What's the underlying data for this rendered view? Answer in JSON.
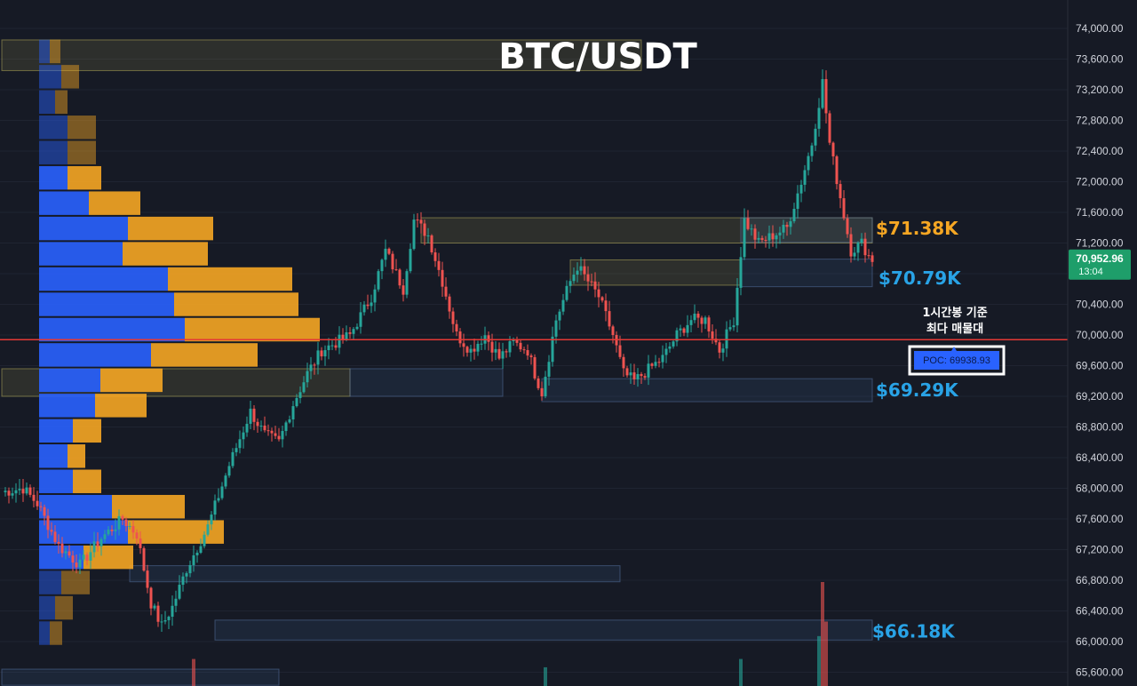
{
  "chart_data": {
    "type": "candlestick",
    "title": "BTC/USDT",
    "symbol": "BTC/USDT",
    "ylim": [
      65450,
      74300
    ],
    "y_ticks": [
      "74,000.00",
      "73,600.00",
      "73,200.00",
      "72,800.00",
      "72,400.00",
      "72,000.00",
      "71,600.00",
      "71,200.00",
      "70,800.00",
      "70,400.00",
      "70,000.00",
      "69,600.00",
      "69,200.00",
      "68,800.00",
      "68,400.00",
      "68,000.00",
      "67,600.00",
      "67,200.00",
      "66,800.00",
      "66,400.00",
      "66,000.00",
      "65,600.00"
    ],
    "y_tick_values": [
      74000,
      73600,
      73200,
      72800,
      72400,
      72000,
      71600,
      71200,
      70800,
      70400,
      70000,
      69600,
      69200,
      68800,
      68400,
      68000,
      67600,
      67200,
      66800,
      66400,
      66000,
      65600
    ],
    "colors": {
      "up": "#26a69a",
      "down": "#ef5350",
      "buy_volume": "#2962ff",
      "sell_volume": "#f5a623",
      "poc_line": "#e53935",
      "level_orange": "#f5a623",
      "level_blue": "#29a3e6",
      "price_label": "#1e9e6a"
    },
    "current_price": {
      "value": 70952.96,
      "label": "70,952.96",
      "timer": "13:04"
    },
    "poc": {
      "value": 69938.93,
      "label": "POC: 69938.93",
      "note": [
        "1시간봉 기준",
        "최다 매물대"
      ]
    },
    "levels": [
      {
        "label": "$71.38K",
        "value": 71380,
        "color": "#f5a623"
      },
      {
        "label": "$70.79K",
        "value": 70790,
        "color": "#29a3e6"
      },
      {
        "label": "$69.29K",
        "value": 69290,
        "color": "#29a3e6"
      },
      {
        "label": "$66.18K",
        "value": 66180,
        "color": "#29a3e6"
      }
    ],
    "zones": [
      {
        "from_bar": 0,
        "to_bar": 180,
        "low": 73450,
        "high": 73850,
        "kind": "supply"
      },
      {
        "from_bar": 118,
        "to_bar": 245,
        "low": 71200,
        "high": 71530,
        "kind": "supply"
      },
      {
        "from_bar": 160,
        "to_bar": 208,
        "low": 70650,
        "high": 70980,
        "kind": "supply"
      },
      {
        "from_bar": 208,
        "to_bar": 245,
        "low": 70630,
        "high": 70990,
        "kind": "demand"
      },
      {
        "from_bar": 208,
        "to_bar": 245,
        "low": 71210,
        "high": 71530,
        "kind": "demand"
      },
      {
        "from_bar": 0,
        "to_bar": 98,
        "low": 69200,
        "high": 69560,
        "kind": "supply"
      },
      {
        "from_bar": 98,
        "to_bar": 141,
        "low": 69200,
        "high": 69560,
        "kind": "demand"
      },
      {
        "from_bar": 152,
        "to_bar": 245,
        "low": 69130,
        "high": 69430,
        "kind": "demand"
      },
      {
        "from_bar": 36,
        "to_bar": 174,
        "low": 66780,
        "high": 66990,
        "kind": "demand"
      },
      {
        "from_bar": 60,
        "to_bar": 245,
        "low": 66020,
        "high": 66280,
        "kind": "demand"
      },
      {
        "from_bar": 0,
        "to_bar": 78,
        "low": 65430,
        "high": 65640,
        "kind": "demand"
      }
    ],
    "volume_profile": [
      {
        "price": 73700,
        "buy": 12,
        "sell": 12
      },
      {
        "price": 73370,
        "buy": 25,
        "sell": 20
      },
      {
        "price": 73040,
        "buy": 18,
        "sell": 14
      },
      {
        "price": 72710,
        "buy": 32,
        "sell": 32
      },
      {
        "price": 72380,
        "buy": 32,
        "sell": 32
      },
      {
        "price": 72050,
        "buy": 32,
        "sell": 38
      },
      {
        "price": 71720,
        "buy": 56,
        "sell": 58
      },
      {
        "price": 71390,
        "buy": 100,
        "sell": 96
      },
      {
        "price": 71060,
        "buy": 94,
        "sell": 96
      },
      {
        "price": 70730,
        "buy": 145,
        "sell": 140
      },
      {
        "price": 70400,
        "buy": 152,
        "sell": 140
      },
      {
        "price": 70070,
        "buy": 164,
        "sell": 152
      },
      {
        "price": 69740,
        "buy": 126,
        "sell": 120
      },
      {
        "price": 69410,
        "buy": 69,
        "sell": 70
      },
      {
        "price": 69080,
        "buy": 63,
        "sell": 58
      },
      {
        "price": 68750,
        "buy": 38,
        "sell": 32
      },
      {
        "price": 68420,
        "buy": 32,
        "sell": 20
      },
      {
        "price": 68090,
        "buy": 38,
        "sell": 32
      },
      {
        "price": 67760,
        "buy": 82,
        "sell": 82
      },
      {
        "price": 67430,
        "buy": 100,
        "sell": 108
      },
      {
        "price": 67100,
        "buy": 50,
        "sell": 56
      },
      {
        "price": 66770,
        "buy": 25,
        "sell": 32
      },
      {
        "price": 66440,
        "buy": 18,
        "sell": 20
      },
      {
        "price": 66110,
        "buy": 12,
        "sell": 14
      }
    ],
    "candles_anchor": [
      [
        0,
        67950
      ],
      [
        6,
        68000
      ],
      [
        10,
        67800
      ],
      [
        16,
        67250
      ],
      [
        22,
        67000
      ],
      [
        28,
        67350
      ],
      [
        34,
        67600
      ],
      [
        38,
        67400
      ],
      [
        42,
        66500
      ],
      [
        45,
        66200
      ],
      [
        48,
        66450
      ],
      [
        52,
        66950
      ],
      [
        58,
        67500
      ],
      [
        64,
        68300
      ],
      [
        70,
        69000
      ],
      [
        74,
        68700
      ],
      [
        78,
        68600
      ],
      [
        82,
        69100
      ],
      [
        86,
        69500
      ],
      [
        90,
        69800
      ],
      [
        98,
        70000
      ],
      [
        104,
        70500
      ],
      [
        108,
        71100
      ],
      [
        113,
        70600
      ],
      [
        116,
        71500
      ],
      [
        120,
        71300
      ],
      [
        124,
        70700
      ],
      [
        128,
        70000
      ],
      [
        132,
        69800
      ],
      [
        136,
        70000
      ],
      [
        140,
        69700
      ],
      [
        144,
        69900
      ],
      [
        148,
        69800
      ],
      [
        150,
        69500
      ],
      [
        152,
        69250
      ],
      [
        156,
        70200
      ],
      [
        160,
        70700
      ],
      [
        162,
        70900
      ],
      [
        168,
        70500
      ],
      [
        172,
        70000
      ],
      [
        175,
        69500
      ],
      [
        178,
        69400
      ],
      [
        182,
        69550
      ],
      [
        186,
        69700
      ],
      [
        190,
        70000
      ],
      [
        194,
        70200
      ],
      [
        198,
        70200
      ],
      [
        202,
        69800
      ],
      [
        206,
        70200
      ],
      [
        209,
        71500
      ],
      [
        213,
        71200
      ],
      [
        217,
        71300
      ],
      [
        221,
        71400
      ],
      [
        225,
        72000
      ],
      [
        228,
        72500
      ],
      [
        231,
        73300
      ],
      [
        233,
        72500
      ],
      [
        236,
        71800
      ],
      [
        239,
        71100
      ],
      [
        242,
        71200
      ],
      [
        245,
        70950
      ]
    ],
    "volume_spikes": [
      {
        "bar": 231,
        "value": 100,
        "color": "#ef5350"
      },
      {
        "bar": 232,
        "value": 62,
        "color": "#ef5350"
      },
      {
        "bar": 230,
        "value": 48,
        "color": "#26a69a"
      },
      {
        "bar": 54,
        "value": 26,
        "color": "#ef5350"
      },
      {
        "bar": 208,
        "value": 26,
        "color": "#26a69a"
      },
      {
        "bar": 153,
        "value": 18,
        "color": "#26a69a"
      }
    ]
  }
}
